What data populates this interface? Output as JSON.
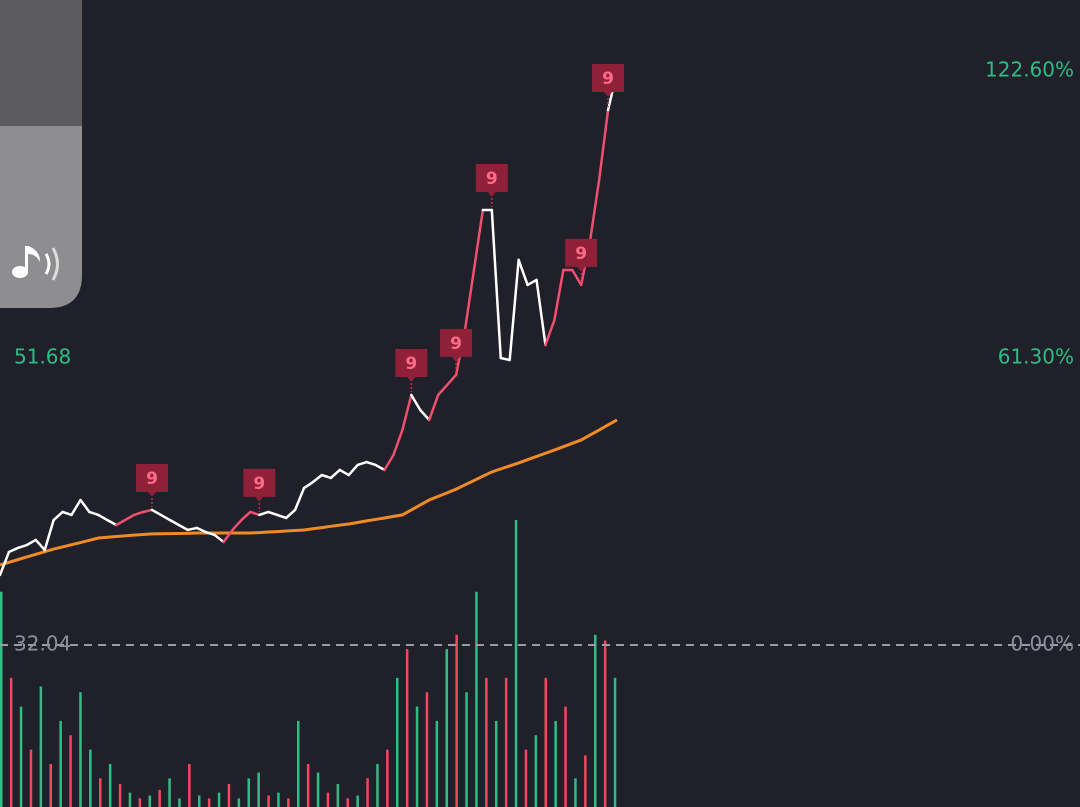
{
  "chart_data": [
    {
      "type": "line",
      "ylim": [
        20.95,
        76.18
      ],
      "yticks": [
        32.04,
        51.68
      ],
      "y2lim": [
        -34.6,
        137.77
      ],
      "y2ticks": [
        {
          "value": 0,
          "label": "0.00%"
        },
        {
          "value": 61.3,
          "label": "61.30%"
        },
        {
          "value": 122.6,
          "label": "122.60%"
        }
      ],
      "series": [
        {
          "color": "#ffffff",
          "values": [
            36.83,
            38.4,
            38.68,
            38.88,
            39.23,
            38.54,
            40.59,
            41.14,
            40.94,
            41.96,
            41.14,
            40.94,
            40.59,
            40.25,
            40.59,
            40.94,
            41.14,
            41.28,
            40.94,
            40.59,
            40.25,
            39.91,
            40.05,
            39.77,
            39.57,
            39.09,
            39.91,
            40.59,
            41.14,
            40.94,
            41.14,
            40.94,
            40.73,
            41.28,
            42.78,
            43.19,
            43.67,
            43.47,
            44.02,
            43.67,
            44.36,
            44.56,
            44.36,
            44.02,
            45.04,
            46.75,
            49.15,
            48.12,
            47.44,
            49.15,
            49.83,
            50.52,
            53.6,
            57.7,
            61.81,
            61.81,
            51.68,
            51.54,
            58.39,
            56.68,
            57.02,
            52.57,
            54.28,
            57.7,
            57.7,
            56.68,
            59.75,
            63.86,
            68.65,
            71.25
          ],
          "segment_colors": [
            "#ffffff",
            "#ffffff",
            "#ffffff",
            "#ffffff",
            "#ffffff",
            "#ffffff",
            "#ffffff",
            "#ffffff",
            "#ffffff",
            "#ffffff",
            "#ffffff",
            "#ffffff",
            "#ffffff",
            "#ffffff",
            "#f0506e",
            "#f0506e",
            "#f0506e",
            "#f0506e",
            "#ffffff",
            "#ffffff",
            "#ffffff",
            "#ffffff",
            "#ffffff",
            "#ffffff",
            "#ffffff",
            "#ffffff",
            "#f0506e",
            "#f0506e",
            "#f0506e",
            "#f0506e",
            "#ffffff",
            "#ffffff",
            "#ffffff",
            "#ffffff",
            "#ffffff",
            "#ffffff",
            "#ffffff",
            "#ffffff",
            "#ffffff",
            "#ffffff",
            "#ffffff",
            "#ffffff",
            "#ffffff",
            "#ffffff",
            "#f0506e",
            "#f0506e",
            "#f0506e",
            "#ffffff",
            "#ffffff",
            "#f0506e",
            "#f0506e",
            "#f0506e",
            "#f0506e",
            "#f0506e",
            "#f0506e",
            "#ffffff",
            "#ffffff",
            "#ffffff",
            "#ffffff",
            "#ffffff",
            "#ffffff",
            "#ffffff",
            "#f0506e",
            "#f0506e",
            "#f0506e",
            "#f0506e",
            "#f0506e",
            "#f0506e",
            "#f0506e",
            "#ffffff"
          ]
        },
        {
          "color": "#f08a24",
          "values": [
            37.52,
            37.7,
            37.88,
            38.06,
            38.24,
            38.42,
            38.6,
            38.75,
            38.9,
            39.05,
            39.2,
            39.36,
            39.41,
            39.46,
            39.51,
            39.56,
            39.6,
            39.64,
            39.65,
            39.66,
            39.67,
            39.68,
            39.7,
            39.7,
            39.7,
            39.7,
            39.7,
            39.7,
            39.7,
            39.73,
            39.77,
            39.8,
            39.84,
            39.87,
            39.91,
            39.99,
            40.07,
            40.16,
            40.24,
            40.32,
            40.42,
            40.53,
            40.63,
            40.73,
            40.84,
            40.94,
            41.28,
            41.62,
            41.96,
            42.21,
            42.45,
            42.7,
            43.0,
            43.29,
            43.59,
            43.88,
            44.09,
            44.29,
            44.5,
            44.72,
            44.94,
            45.16,
            45.38,
            45.61,
            45.84,
            46.07,
            46.41,
            46.75,
            47.1,
            47.44
          ]
        }
      ],
      "annotations": [
        {
          "index": 17,
          "label": "9"
        },
        {
          "index": 29,
          "label": "9"
        },
        {
          "index": 46,
          "label": "9"
        },
        {
          "index": 51,
          "label": "9"
        },
        {
          "index": 55,
          "label": "9"
        },
        {
          "index": 65,
          "label": "9"
        },
        {
          "index": 68,
          "label": "9"
        }
      ]
    },
    {
      "type": "bar",
      "ylim": [
        0,
        100
      ],
      "values": [
        75,
        45,
        35,
        20,
        42,
        15,
        30,
        25,
        40,
        20,
        10,
        15,
        8,
        5,
        3,
        4,
        6,
        10,
        3,
        15,
        4,
        3,
        5,
        8,
        3,
        10,
        12,
        4,
        5,
        3,
        30,
        15,
        12,
        5,
        8,
        3,
        4,
        10,
        15,
        20,
        45,
        55,
        35,
        40,
        30,
        55,
        60,
        40,
        75,
        45,
        30,
        45,
        100,
        20,
        25,
        45,
        30,
        35,
        10,
        18,
        60,
        58,
        45
      ],
      "colors": [
        "#2ebd85",
        "#f6465d",
        "#2ebd85",
        "#f6465d",
        "#2ebd85",
        "#f6465d",
        "#2ebd85",
        "#f6465d",
        "#2ebd85",
        "#2ebd85",
        "#f6465d",
        "#2ebd85",
        "#f6465d",
        "#2ebd85",
        "#f6465d",
        "#2ebd85",
        "#f6465d",
        "#2ebd85",
        "#2ebd85",
        "#f6465d",
        "#2ebd85",
        "#f6465d",
        "#2ebd85",
        "#f6465d",
        "#2ebd85",
        "#2ebd85",
        "#2ebd85",
        "#f6465d",
        "#2ebd85",
        "#f6465d",
        "#2ebd85",
        "#f6465d",
        "#2ebd85",
        "#f6465d",
        "#2ebd85",
        "#f6465d",
        "#2ebd85",
        "#f6465d",
        "#2ebd85",
        "#f6465d",
        "#2ebd85",
        "#f6465d",
        "#2ebd85",
        "#f6465d",
        "#2ebd85",
        "#2ebd85",
        "#f6465d",
        "#2ebd85",
        "#2ebd85",
        "#f6465d",
        "#2ebd85",
        "#f6465d",
        "#2ebd85",
        "#f6465d",
        "#2ebd85",
        "#f6465d",
        "#2ebd85",
        "#f6465d",
        "#2ebd85",
        "#f6465d",
        "#2ebd85",
        "#f6465d",
        "#2ebd85"
      ]
    }
  ]
}
